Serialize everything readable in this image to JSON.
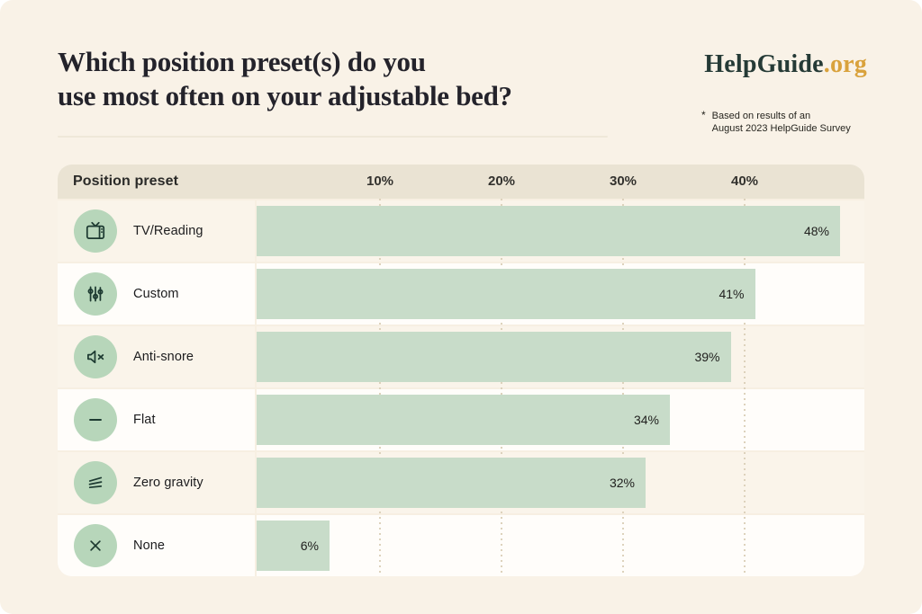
{
  "header": {
    "title_line1": "Which position preset(s) do you",
    "title_line2": "use most often on your adjustable bed?",
    "logo": {
      "name": "HelpGuide",
      "tld": ".org"
    },
    "footnote": {
      "marker": "*",
      "line1": "Based on results of an",
      "line2": "August 2023 HelpGuide Survey"
    }
  },
  "chart_data": {
    "type": "bar",
    "orientation": "horizontal",
    "column_header": "Position preset",
    "categories": [
      "TV/Reading",
      "Custom",
      "Anti-snore",
      "Flat",
      "Zero gravity",
      "None"
    ],
    "values": [
      48,
      41,
      39,
      34,
      32,
      6
    ],
    "value_labels": [
      "48%",
      "41%",
      "39%",
      "34%",
      "32%",
      "6%"
    ],
    "icons": [
      "tv-icon",
      "sliders-icon",
      "mute-icon",
      "flat-line-icon",
      "zero-gravity-icon",
      "x-icon"
    ],
    "x_ticks": [
      "10%",
      "20%",
      "30%",
      "40%"
    ],
    "x_tick_values": [
      10,
      20,
      30,
      40
    ],
    "xlim": [
      0,
      50
    ],
    "grid": "dotted-vertical",
    "legend": "none",
    "bar_color": "#c8dcc9",
    "icon_circle_color": "#b7d6ba",
    "icon_stroke_color": "#1d3a31",
    "header_bg": "#eae3d3",
    "row_alt_bg": "#faf4ea",
    "row_bg": "#fffdfa",
    "page_bg": "#f9f2e7",
    "logo_color": "#253a36",
    "logo_accent_color": "#d9a23c"
  }
}
